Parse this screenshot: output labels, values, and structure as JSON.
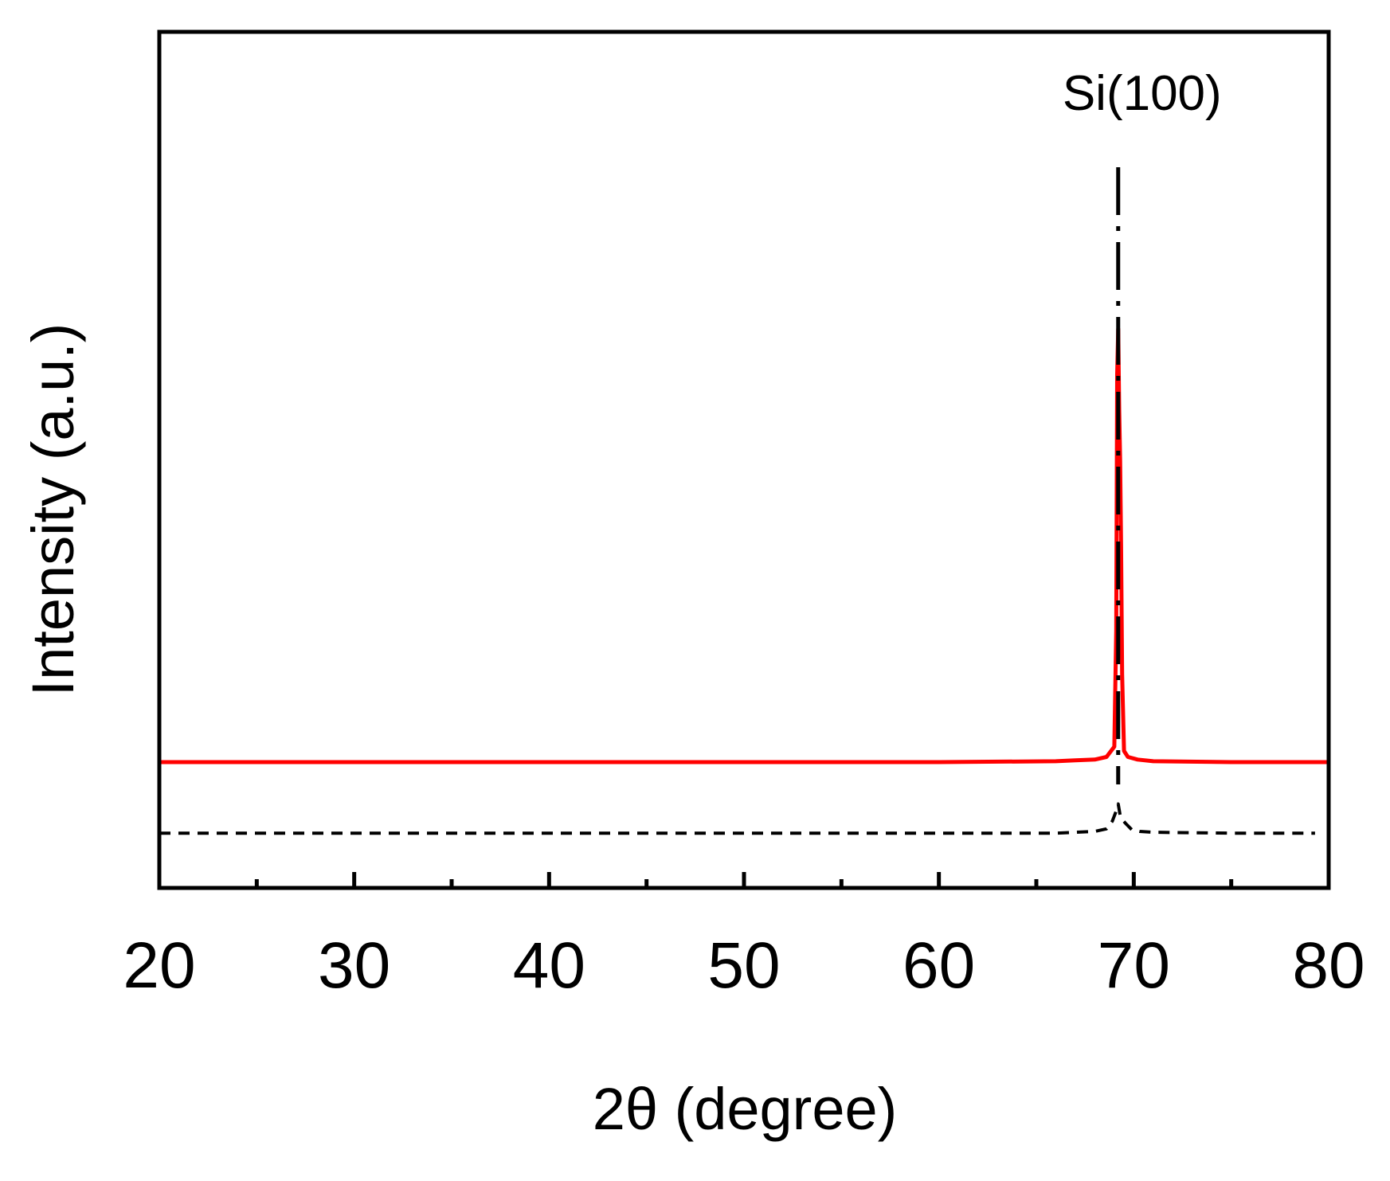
{
  "chart_data": {
    "type": "line",
    "title": "",
    "xlabel": "2θ (degree)",
    "ylabel": "Intensity (a.u.)",
    "xlim": [
      20,
      80
    ],
    "xticks": [
      20,
      30,
      40,
      50,
      60,
      70,
      80
    ],
    "xtick_labels": [
      "20",
      "30",
      "40",
      "50",
      "60",
      "70",
      "80"
    ],
    "ylim": [
      0,
      1
    ],
    "y_tick_labels": "none",
    "grid": false,
    "legend": "none",
    "annotations": [
      {
        "text": "Si(100)",
        "x": 69.2,
        "style": "dash-dot vertical reference line",
        "color": "#000000"
      }
    ],
    "series": [
      {
        "color": "#ff0000",
        "line_style": "solid",
        "x": [
          20,
          30,
          40,
          50,
          60,
          66,
          67,
          68,
          68.6,
          69.0,
          69.1,
          69.15,
          69.2,
          69.25,
          69.3,
          69.35,
          69.4,
          69.5,
          69.7,
          70.2,
          71,
          75,
          80
        ],
        "y": [
          0.147,
          0.147,
          0.147,
          0.147,
          0.147,
          0.148,
          0.149,
          0.15,
          0.153,
          0.165,
          0.3,
          0.6,
          0.653,
          0.56,
          0.5,
          0.4,
          0.25,
          0.16,
          0.153,
          0.15,
          0.148,
          0.147,
          0.147
        ]
      },
      {
        "color": "#000000",
        "line_style": "dashed",
        "x": [
          20,
          30,
          40,
          50,
          60,
          66,
          67,
          68,
          68.6,
          68.9,
          69.1,
          69.2,
          69.3,
          69.4,
          69.6,
          69.9,
          70.3,
          71,
          75,
          79.3
        ],
        "y": [
          0.064,
          0.064,
          0.064,
          0.064,
          0.064,
          0.064,
          0.065,
          0.066,
          0.069,
          0.078,
          0.09,
          0.098,
          0.085,
          0.08,
          0.075,
          0.068,
          0.066,
          0.065,
          0.064,
          0.064
        ]
      }
    ]
  }
}
